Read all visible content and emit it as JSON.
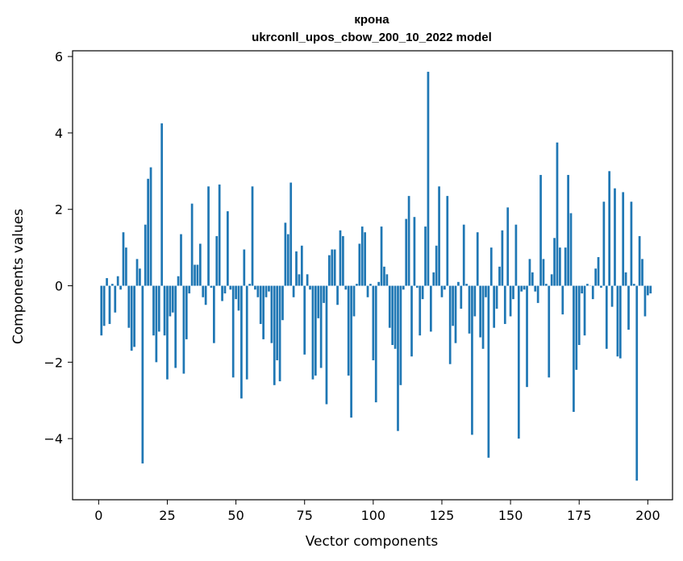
{
  "chart_data": {
    "type": "bar",
    "title": "крона",
    "subtitle": "ukrconll_upos_cbow_200_10_2022 model",
    "xlabel": "Vector components",
    "ylabel": "Components values",
    "xlim": [
      -9.5,
      209
    ],
    "ylim": [
      -5.6,
      6.15
    ],
    "xticks": [
      0,
      25,
      50,
      75,
      100,
      125,
      150,
      175,
      200
    ],
    "yticks": [
      -4,
      -2,
      0,
      2,
      4,
      6
    ],
    "xtick_labels": [
      "0",
      "25",
      "50",
      "75",
      "100",
      "125",
      "150",
      "175",
      "200"
    ],
    "ytick_labels": [
      "−4",
      "−2",
      "0",
      "2",
      "4",
      "6"
    ],
    "grid": false,
    "bar_color": "#1f77b4",
    "x_start": 1,
    "values": [
      -1.3,
      -1.05,
      0.2,
      -1.0,
      0.05,
      -0.7,
      0.25,
      -0.1,
      1.4,
      1.0,
      -1.1,
      -1.7,
      -1.6,
      0.7,
      0.45,
      -4.65,
      1.6,
      2.8,
      3.1,
      -1.3,
      -2.0,
      -1.2,
      4.25,
      -1.3,
      -2.45,
      -0.8,
      -0.7,
      -2.15,
      0.25,
      1.35,
      -2.3,
      -1.4,
      -0.2,
      2.15,
      0.55,
      0.55,
      1.1,
      -0.3,
      -0.5,
      2.6,
      -0.05,
      -1.5,
      1.3,
      2.65,
      -0.4,
      -0.2,
      1.95,
      -0.1,
      -2.4,
      -0.35,
      -0.65,
      -2.95,
      0.95,
      -2.45,
      0.05,
      2.6,
      -0.1,
      -0.3,
      -1.0,
      -1.4,
      -0.3,
      -0.15,
      -1.5,
      -2.6,
      -1.95,
      -2.5,
      -0.9,
      1.65,
      1.35,
      2.7,
      -0.3,
      0.9,
      0.3,
      1.05,
      -1.8,
      0.3,
      -0.1,
      -2.45,
      -2.35,
      -0.85,
      -2.15,
      -0.45,
      -3.1,
      0.8,
      0.95,
      0.95,
      -0.5,
      1.45,
      1.3,
      -0.1,
      -2.35,
      -3.45,
      -0.8,
      0.05,
      1.1,
      1.55,
      1.4,
      -0.3,
      0.05,
      -1.95,
      -3.05,
      0.1,
      1.55,
      0.5,
      0.3,
      -1.1,
      -1.55,
      -1.65,
      -3.8,
      -2.6,
      -0.1,
      1.75,
      2.35,
      -1.85,
      1.8,
      -0.05,
      -1.3,
      -0.35,
      1.55,
      5.6,
      -1.2,
      0.35,
      1.05,
      2.6,
      -0.3,
      -0.1,
      2.35,
      -2.05,
      -1.05,
      -1.5,
      0.1,
      -0.6,
      1.6,
      0.05,
      -1.25,
      -3.9,
      -0.8,
      1.4,
      -1.35,
      -1.65,
      -0.3,
      -4.5,
      1.0,
      -1.1,
      -0.6,
      0.5,
      1.45,
      -1.0,
      2.05,
      -0.8,
      -0.35,
      1.6,
      -4.0,
      -0.15,
      -0.1,
      -2.65,
      0.7,
      0.35,
      -0.15,
      -0.45,
      2.9,
      0.7,
      0.05,
      -2.4,
      0.3,
      1.25,
      3.75,
      1.0,
      -0.75,
      1.0,
      2.9,
      1.9,
      -3.3,
      -2.2,
      -1.55,
      -0.2,
      -1.3,
      0.05,
      0.0,
      -0.35,
      0.45,
      0.75,
      -0.05,
      2.2,
      -1.65,
      3.0,
      -0.55,
      2.55,
      -1.85,
      -1.9,
      2.45,
      0.35,
      -1.15,
      2.2,
      0.05,
      -5.1,
      1.3,
      0.7,
      -0.8,
      -0.25,
      -0.2
    ]
  }
}
